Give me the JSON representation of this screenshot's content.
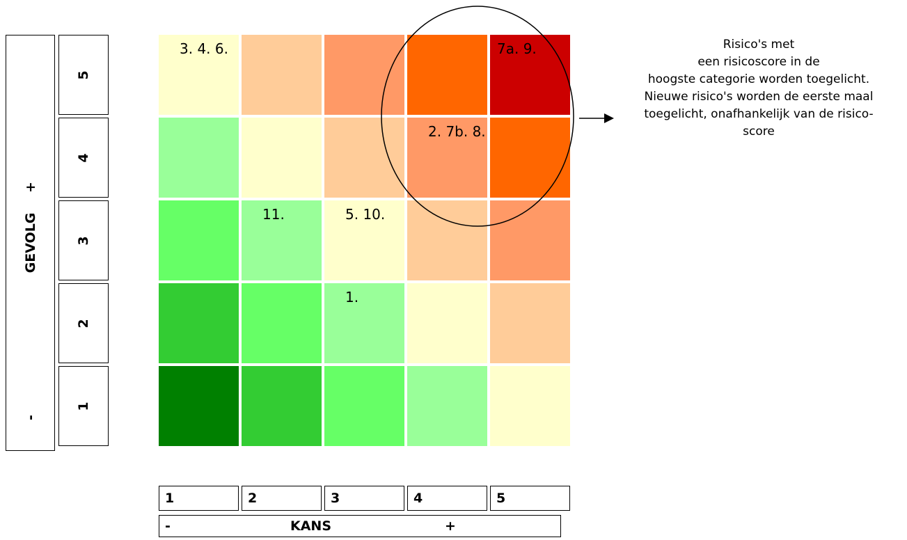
{
  "chart_data": {
    "type": "heatmap",
    "title": "",
    "xlabel": "KANS",
    "ylabel": "GEVOLG",
    "x_categories": [
      "1",
      "2",
      "3",
      "4",
      "5"
    ],
    "y_categories": [
      "1",
      "2",
      "3",
      "4",
      "5"
    ],
    "x_axis_ends": {
      "low": "-",
      "high": "+"
    },
    "y_axis_ends": {
      "low": "-",
      "high": "+"
    },
    "cells": [
      {
        "kans": 1,
        "gevolg": 5,
        "color": "#ffffcc",
        "label": "3. 4. 6."
      },
      {
        "kans": 2,
        "gevolg": 5,
        "color": "#ffcc99",
        "label": ""
      },
      {
        "kans": 3,
        "gevolg": 5,
        "color": "#ff9966",
        "label": ""
      },
      {
        "kans": 4,
        "gevolg": 5,
        "color": "#ff6600",
        "label": ""
      },
      {
        "kans": 5,
        "gevolg": 5,
        "color": "#cc0000",
        "label": "7a. 9."
      },
      {
        "kans": 1,
        "gevolg": 4,
        "color": "#99ff99",
        "label": ""
      },
      {
        "kans": 2,
        "gevolg": 4,
        "color": "#ffffcc",
        "label": ""
      },
      {
        "kans": 3,
        "gevolg": 4,
        "color": "#ffcc99",
        "label": ""
      },
      {
        "kans": 4,
        "gevolg": 4,
        "color": "#ff9966",
        "label": "2. 7b. 8."
      },
      {
        "kans": 5,
        "gevolg": 4,
        "color": "#ff6600",
        "label": ""
      },
      {
        "kans": 1,
        "gevolg": 3,
        "color": "#66ff66",
        "label": ""
      },
      {
        "kans": 2,
        "gevolg": 3,
        "color": "#99ff99",
        "label": "11."
      },
      {
        "kans": 3,
        "gevolg": 3,
        "color": "#ffffcc",
        "label": "5. 10."
      },
      {
        "kans": 4,
        "gevolg": 3,
        "color": "#ffcc99",
        "label": ""
      },
      {
        "kans": 5,
        "gevolg": 3,
        "color": "#ff9966",
        "label": ""
      },
      {
        "kans": 1,
        "gevolg": 2,
        "color": "#33cc33",
        "label": ""
      },
      {
        "kans": 2,
        "gevolg": 2,
        "color": "#66ff66",
        "label": ""
      },
      {
        "kans": 3,
        "gevolg": 2,
        "color": "#99ff99",
        "label": "1."
      },
      {
        "kans": 4,
        "gevolg": 2,
        "color": "#ffffcc",
        "label": ""
      },
      {
        "kans": 5,
        "gevolg": 2,
        "color": "#ffcc99",
        "label": ""
      },
      {
        "kans": 1,
        "gevolg": 1,
        "color": "#008000",
        "label": ""
      },
      {
        "kans": 2,
        "gevolg": 1,
        "color": "#33cc33",
        "label": ""
      },
      {
        "kans": 3,
        "gevolg": 1,
        "color": "#66ff66",
        "label": ""
      },
      {
        "kans": 4,
        "gevolg": 1,
        "color": "#99ff99",
        "label": ""
      },
      {
        "kans": 5,
        "gevolg": 1,
        "color": "#ffffcc",
        "label": ""
      }
    ],
    "annotation": {
      "lines": [
        "Risico's met",
        "een risicoscore in de",
        "hoogste categorie worden toegelicht.",
        "Nieuwe risico's worden de eerste maal",
        "toegelicht, onafhankelijk van de risico-",
        "score"
      ]
    }
  }
}
